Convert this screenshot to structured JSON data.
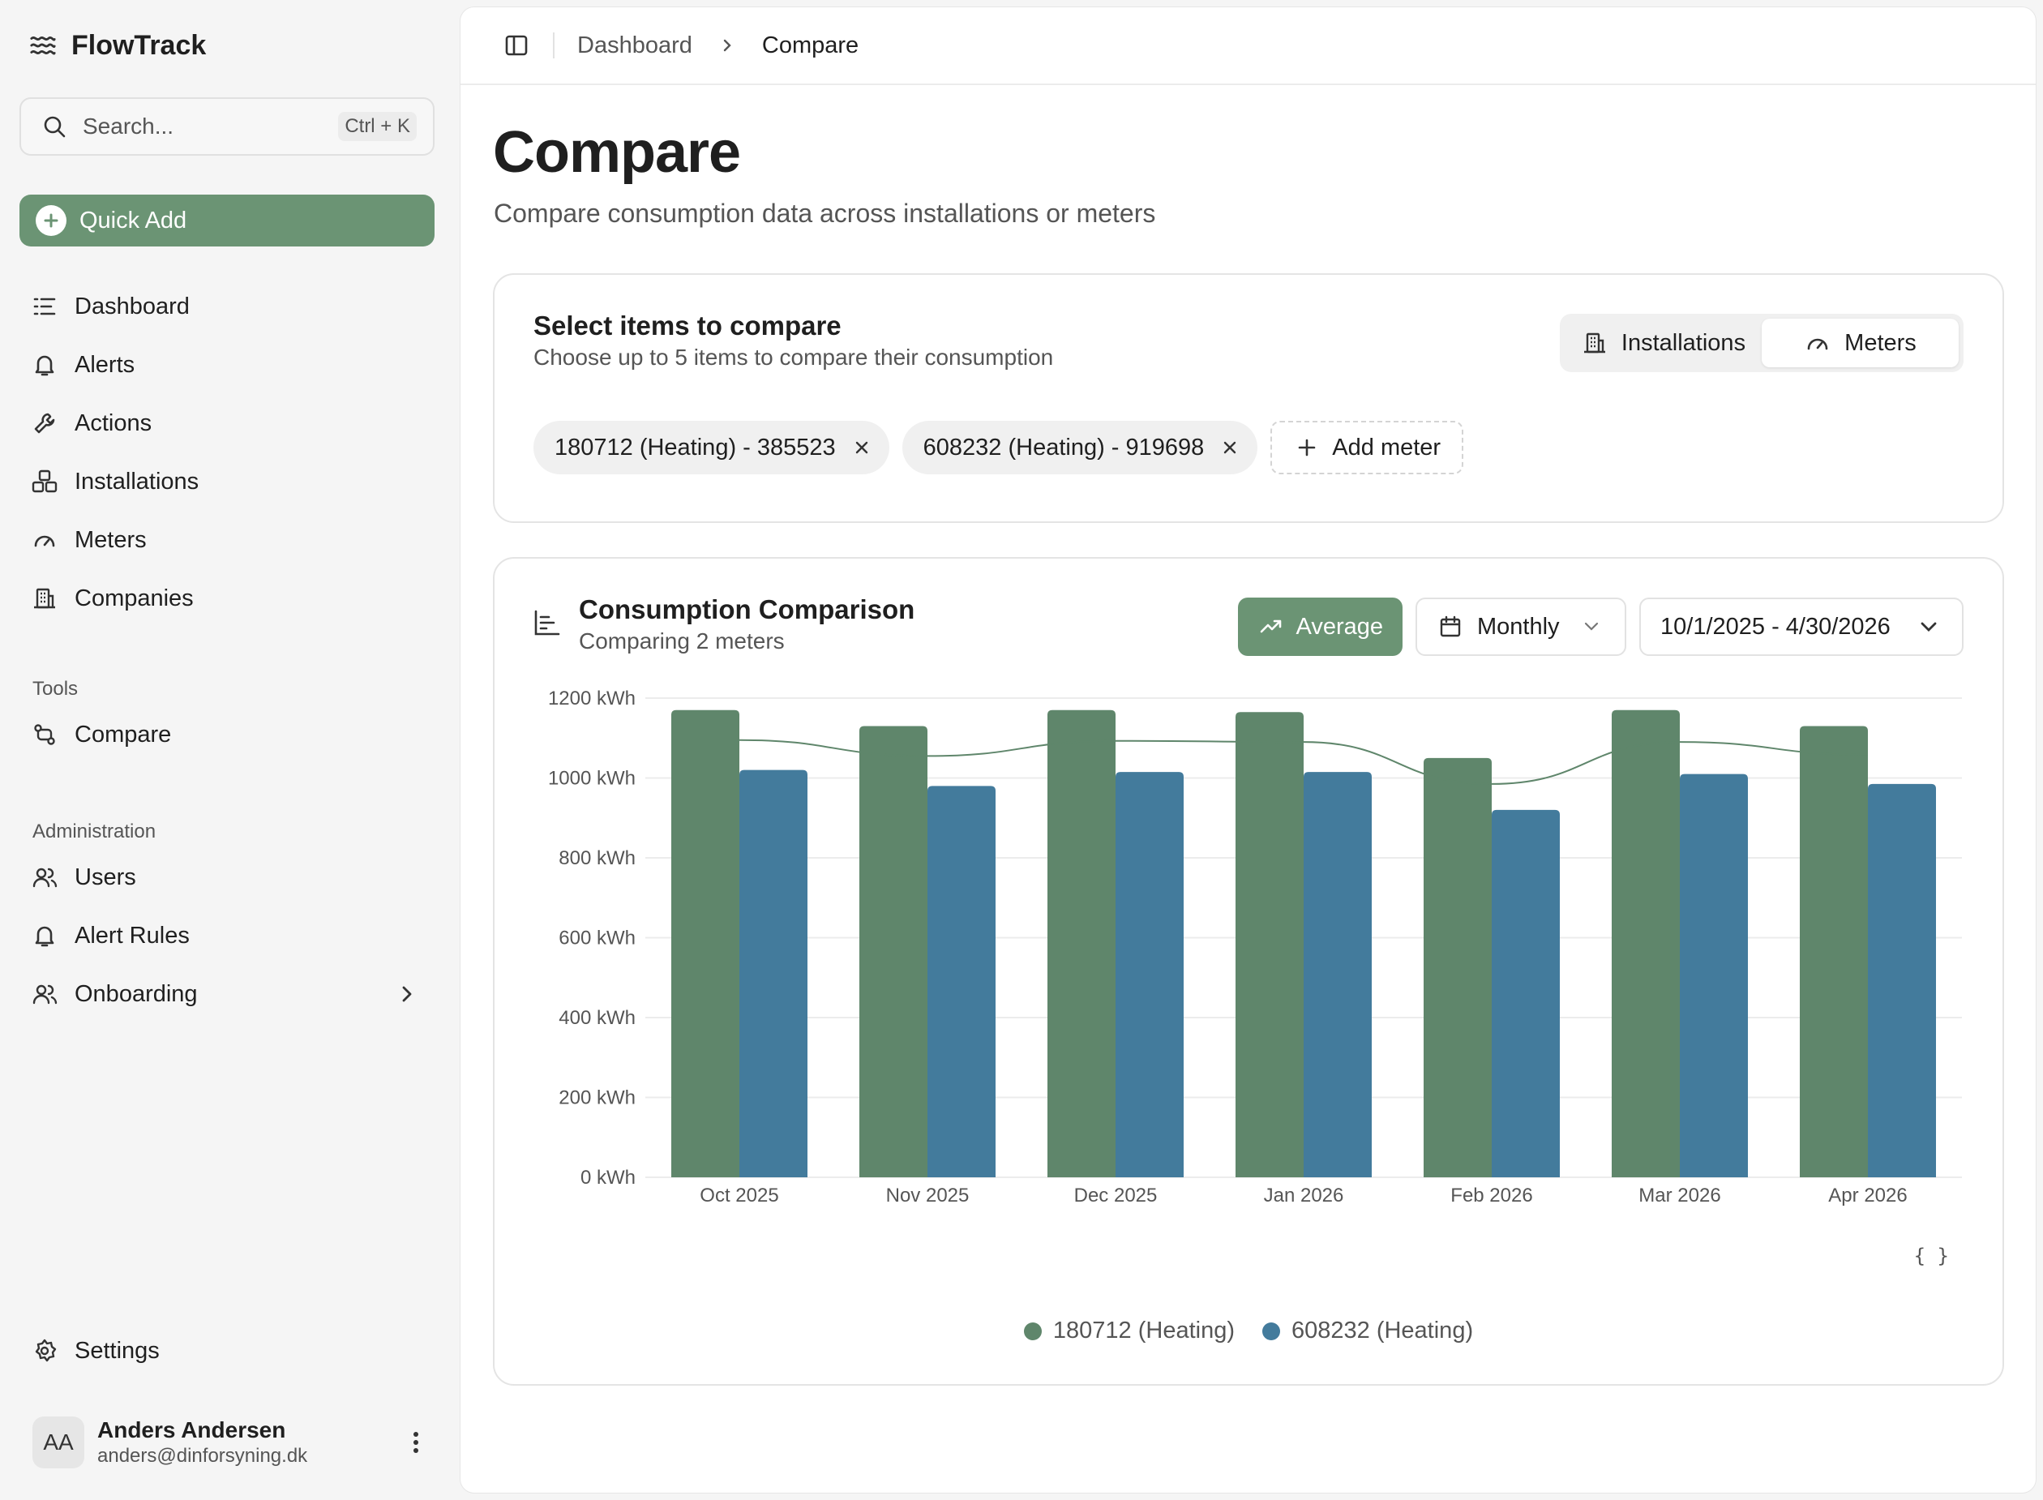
{
  "app": {
    "name": "FlowTrack"
  },
  "search": {
    "placeholder": "Search...",
    "shortcut": "Ctrl + K"
  },
  "quick_add": {
    "label": "Quick Add"
  },
  "nav": {
    "main": [
      {
        "label": "Dashboard",
        "icon": "list-icon"
      },
      {
        "label": "Alerts",
        "icon": "bell-icon"
      },
      {
        "label": "Actions",
        "icon": "wrench-icon"
      },
      {
        "label": "Installations",
        "icon": "boxes-icon"
      },
      {
        "label": "Meters",
        "icon": "gauge-icon"
      },
      {
        "label": "Companies",
        "icon": "building-icon"
      }
    ],
    "tools_title": "Tools",
    "tools": [
      {
        "label": "Compare",
        "icon": "compare-icon"
      }
    ],
    "admin_title": "Administration",
    "admin": [
      {
        "label": "Users",
        "icon": "users-icon"
      },
      {
        "label": "Alert Rules",
        "icon": "bell-icon"
      },
      {
        "label": "Onboarding",
        "icon": "users-icon"
      }
    ],
    "settings": "Settings"
  },
  "user": {
    "initials": "AA",
    "name": "Anders Andersen",
    "email": "anders@dinforsyning.dk"
  },
  "breadcrumb": {
    "root": "Dashboard",
    "current": "Compare"
  },
  "page": {
    "title": "Compare",
    "subtitle": "Compare consumption data across installations or meters"
  },
  "select_card": {
    "title": "Select items to compare",
    "subtitle": "Choose up to 5 items to compare their consumption",
    "toggle": {
      "installations": "Installations",
      "meters": "Meters",
      "active": "Meters"
    },
    "chips": [
      "180712 (Heating) - 385523",
      "608232 (Heating) - 919698"
    ],
    "add_label": "Add meter"
  },
  "chart_card": {
    "title": "Consumption Comparison",
    "subtitle": "Comparing 2 meters",
    "average_label": "Average",
    "period_label": "Monthly",
    "range_label": "10/1/2025 - 4/30/2026",
    "json_label": "{ }"
  },
  "colors": {
    "accent": "#6b9474",
    "series1": "#5f866b",
    "series2": "#437b9c"
  },
  "chart_data": {
    "type": "bar",
    "categories": [
      "Oct 2025",
      "Nov 2025",
      "Dec 2025",
      "Jan 2026",
      "Feb 2026",
      "Mar 2026",
      "Apr 2026"
    ],
    "series": [
      {
        "name": "180712 (Heating)",
        "color": "#5f866b",
        "values": [
          1170,
          1130,
          1170,
          1165,
          1050,
          1170,
          1130
        ]
      },
      {
        "name": "608232 (Heating)",
        "color": "#437b9c",
        "values": [
          1020,
          980,
          1015,
          1015,
          920,
          1010,
          985
        ]
      }
    ],
    "average_line": [
      1095,
      1055,
      1093,
      1090,
      985,
      1090,
      1058
    ],
    "y_ticks": [
      "0 kWh",
      "200 kWh",
      "400 kWh",
      "600 kWh",
      "800 kWh",
      "1000 kWh",
      "1200 kWh"
    ],
    "ylim": [
      0,
      1200
    ],
    "grid": true,
    "legend": "bottom-center"
  }
}
